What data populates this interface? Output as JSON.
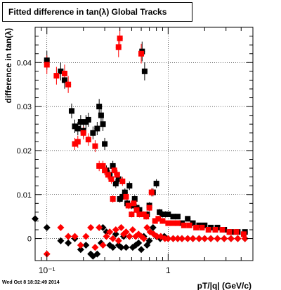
{
  "chart_data": {
    "type": "scatter",
    "title": "Fitted difference in tan(λ)  Global Tracks",
    "xlabel": "pT/|q| (GeV/c)",
    "ylabel": "difference in tan(λ)",
    "xscale": "log",
    "xlim": [
      0.08,
      5.0
    ],
    "ylim": [
      -0.005,
      0.048
    ],
    "grid": true,
    "x_ticks": [
      {
        "value": 0.1,
        "label": "10⁻¹"
      },
      {
        "value": 1,
        "label": "1"
      }
    ],
    "y_ticks": [
      {
        "value": 0,
        "label": "0"
      },
      {
        "value": 0.01,
        "label": "0.01"
      },
      {
        "value": 0.02,
        "label": "0.02"
      },
      {
        "value": 0.03,
        "label": "0.03"
      },
      {
        "value": 0.04,
        "label": "0.04"
      }
    ],
    "colors": {
      "black": "#000000",
      "red": "#ff0000"
    },
    "series": [
      {
        "marker": "square",
        "color": "#000000",
        "points": [
          [
            0.1,
            0.0405
          ],
          [
            0.13,
            0.038
          ],
          [
            0.14,
            0.036
          ],
          [
            0.16,
            0.029
          ],
          [
            0.17,
            0.0255
          ],
          [
            0.18,
            0.025
          ],
          [
            0.19,
            0.0265
          ],
          [
            0.2,
            0.0245
          ],
          [
            0.21,
            0.0265
          ],
          [
            0.22,
            0.027
          ],
          [
            0.24,
            0.024
          ],
          [
            0.26,
            0.025
          ],
          [
            0.27,
            0.03
          ],
          [
            0.28,
            0.028
          ],
          [
            0.29,
            0.026
          ],
          [
            0.3,
            0.0215
          ],
          [
            0.31,
            0.0155
          ],
          [
            0.33,
            0.0145
          ],
          [
            0.35,
            0.0165
          ],
          [
            0.37,
            0.0125
          ],
          [
            0.39,
            0.0135
          ],
          [
            0.4,
            0.009
          ],
          [
            0.42,
            0.0095
          ],
          [
            0.44,
            0.0105
          ],
          [
            0.46,
            0.008
          ],
          [
            0.48,
            0.012
          ],
          [
            0.5,
            0.0075
          ],
          [
            0.53,
            0.009
          ],
          [
            0.55,
            0.007
          ],
          [
            0.58,
            0.0065
          ],
          [
            0.61,
            0.0425
          ],
          [
            0.64,
            0.038
          ],
          [
            0.67,
            0.0055
          ],
          [
            0.7,
            0.0075
          ],
          [
            0.75,
            0.0105
          ],
          [
            0.8,
            0.0125
          ],
          [
            0.85,
            0.006
          ],
          [
            0.9,
            0.0055
          ],
          [
            0.95,
            0.0055
          ],
          [
            1.0,
            0.0055
          ],
          [
            1.1,
            0.005
          ],
          [
            1.2,
            0.005
          ],
          [
            1.3,
            0.0035
          ],
          [
            1.45,
            0.0045
          ],
          [
            1.6,
            0.0035
          ],
          [
            1.8,
            0.003
          ],
          [
            2.0,
            0.003
          ],
          [
            2.25,
            0.0025
          ],
          [
            2.55,
            0.0025
          ],
          [
            2.9,
            0.002
          ],
          [
            3.3,
            0.0015
          ],
          [
            3.75,
            0.0015
          ],
          [
            4.3,
            0.0015
          ]
        ]
      },
      {
        "marker": "square",
        "color": "#ff0000",
        "points": [
          [
            0.1,
            0.0395
          ],
          [
            0.12,
            0.037
          ],
          [
            0.14,
            0.0375
          ],
          [
            0.15,
            0.035
          ],
          [
            0.17,
            0.0215
          ],
          [
            0.18,
            0.022
          ],
          [
            0.2,
            0.024
          ],
          [
            0.22,
            0.0225
          ],
          [
            0.25,
            0.021
          ],
          [
            0.27,
            0.0165
          ],
          [
            0.29,
            0.0165
          ],
          [
            0.3,
            0.0155
          ],
          [
            0.32,
            0.0145
          ],
          [
            0.34,
            0.0135
          ],
          [
            0.35,
            0.009
          ],
          [
            0.36,
            0.0155
          ],
          [
            0.38,
            0.0145
          ],
          [
            0.39,
            0.0435
          ],
          [
            0.4,
            0.0455
          ],
          [
            0.42,
            0.013
          ],
          [
            0.45,
            0.0095
          ],
          [
            0.47,
            0.0075
          ],
          [
            0.5,
            0.0055
          ],
          [
            0.52,
            0.008
          ],
          [
            0.55,
            0.0065
          ],
          [
            0.58,
            0.0055
          ],
          [
            0.6,
            0.042
          ],
          [
            0.63,
            0.0055
          ],
          [
            0.66,
            0.005
          ],
          [
            0.7,
            0.007
          ],
          [
            0.73,
            0.0105
          ],
          [
            0.78,
            0.004
          ],
          [
            0.83,
            0.0045
          ],
          [
            0.9,
            0.004
          ],
          [
            1.0,
            0.0035
          ],
          [
            1.1,
            0.0035
          ],
          [
            1.2,
            0.0035
          ],
          [
            1.35,
            0.003
          ],
          [
            1.5,
            0.003
          ],
          [
            1.7,
            0.0025
          ],
          [
            1.9,
            0.0025
          ],
          [
            2.15,
            0.002
          ],
          [
            2.45,
            0.002
          ],
          [
            2.8,
            0.002
          ],
          [
            3.2,
            0.0015
          ],
          [
            3.65,
            0.0015
          ],
          [
            4.2,
            0.001
          ]
        ]
      },
      {
        "marker": "diamond",
        "color": "#000000",
        "points": [
          [
            0.08,
            0.0045
          ],
          [
            0.1,
            0.0025
          ],
          [
            0.13,
            -0.0005
          ],
          [
            0.15,
            -0.001
          ],
          [
            0.17,
            0.0
          ],
          [
            0.19,
            -0.0025
          ],
          [
            0.21,
            -0.0015
          ],
          [
            0.23,
            -0.0035
          ],
          [
            0.24,
            -0.004
          ],
          [
            0.26,
            -0.0035
          ],
          [
            0.28,
            -0.001
          ],
          [
            0.29,
            0.0025
          ],
          [
            0.31,
            0.0015
          ],
          [
            0.33,
            -0.0015
          ],
          [
            0.35,
            -0.002
          ],
          [
            0.37,
            0.001
          ],
          [
            0.39,
            -0.0015
          ],
          [
            0.41,
            -0.002
          ],
          [
            0.43,
            0.0005
          ],
          [
            0.45,
            -0.002
          ],
          [
            0.48,
            0.0005
          ],
          [
            0.51,
            -0.002
          ],
          [
            0.54,
            -0.0015
          ],
          [
            0.57,
            -0.001
          ],
          [
            0.6,
            -0.0025
          ],
          [
            0.63,
            0.0005
          ],
          [
            0.67,
            -0.0015
          ],
          [
            0.7,
            -0.0005
          ],
          [
            0.75,
            0.0025
          ],
          [
            0.8,
            0.0005
          ],
          [
            0.86,
            0.0
          ],
          [
            0.93,
            0.0005
          ],
          [
            1.0,
            0.0
          ],
          [
            1.1,
            0.0
          ],
          [
            1.2,
            0.0
          ],
          [
            1.3,
            0.0
          ],
          [
            1.45,
            0.0
          ],
          [
            1.6,
            0.0
          ],
          [
            1.8,
            0.0
          ],
          [
            2.0,
            0.0
          ],
          [
            2.25,
            0.0
          ],
          [
            2.55,
            0.0
          ],
          [
            2.9,
            0.0
          ],
          [
            3.3,
            0.0
          ],
          [
            3.75,
            0.0
          ],
          [
            4.3,
            0.0
          ]
        ]
      },
      {
        "marker": "diamond",
        "color": "#ff0000",
        "points": [
          [
            0.1,
            -0.0035
          ],
          [
            0.13,
            0.0025
          ],
          [
            0.15,
            0.0005
          ],
          [
            0.17,
            0.0005
          ],
          [
            0.19,
            -0.0015
          ],
          [
            0.21,
            0.0005
          ],
          [
            0.23,
            0.0025
          ],
          [
            0.25,
            -0.002
          ],
          [
            0.27,
            0.0025
          ],
          [
            0.29,
            -0.0015
          ],
          [
            0.31,
            0.0005
          ],
          [
            0.33,
            0.0015
          ],
          [
            0.35,
            0.0
          ],
          [
            0.37,
            0.002
          ],
          [
            0.39,
            -0.0005
          ],
          [
            0.41,
            0.0025
          ],
          [
            0.43,
            0.001
          ],
          [
            0.45,
            0.0015
          ],
          [
            0.48,
            0.0005
          ],
          [
            0.51,
            0.002
          ],
          [
            0.54,
            0.0005
          ],
          [
            0.57,
            0.001
          ],
          [
            0.6,
            0.0005
          ],
          [
            0.63,
            0.0
          ],
          [
            0.67,
            0.0025
          ],
          [
            0.71,
            0.0015
          ],
          [
            0.76,
            0.001
          ],
          [
            0.81,
            0.0005
          ],
          [
            0.87,
            0.0005
          ],
          [
            0.94,
            0.0
          ],
          [
            1.0,
            0.0
          ],
          [
            1.1,
            0.0
          ],
          [
            1.2,
            0.0
          ],
          [
            1.3,
            0.0
          ],
          [
            1.45,
            0.0
          ],
          [
            1.6,
            0.0
          ],
          [
            1.8,
            0.0
          ],
          [
            2.0,
            0.0
          ],
          [
            2.25,
            0.0
          ],
          [
            2.55,
            0.0
          ],
          [
            2.9,
            0.0
          ],
          [
            3.3,
            0.0
          ],
          [
            3.75,
            0.0
          ],
          [
            4.3,
            0.0
          ]
        ]
      }
    ]
  },
  "footer": {
    "timestamp": "Wed Oct  8 18:32:49 2014"
  }
}
